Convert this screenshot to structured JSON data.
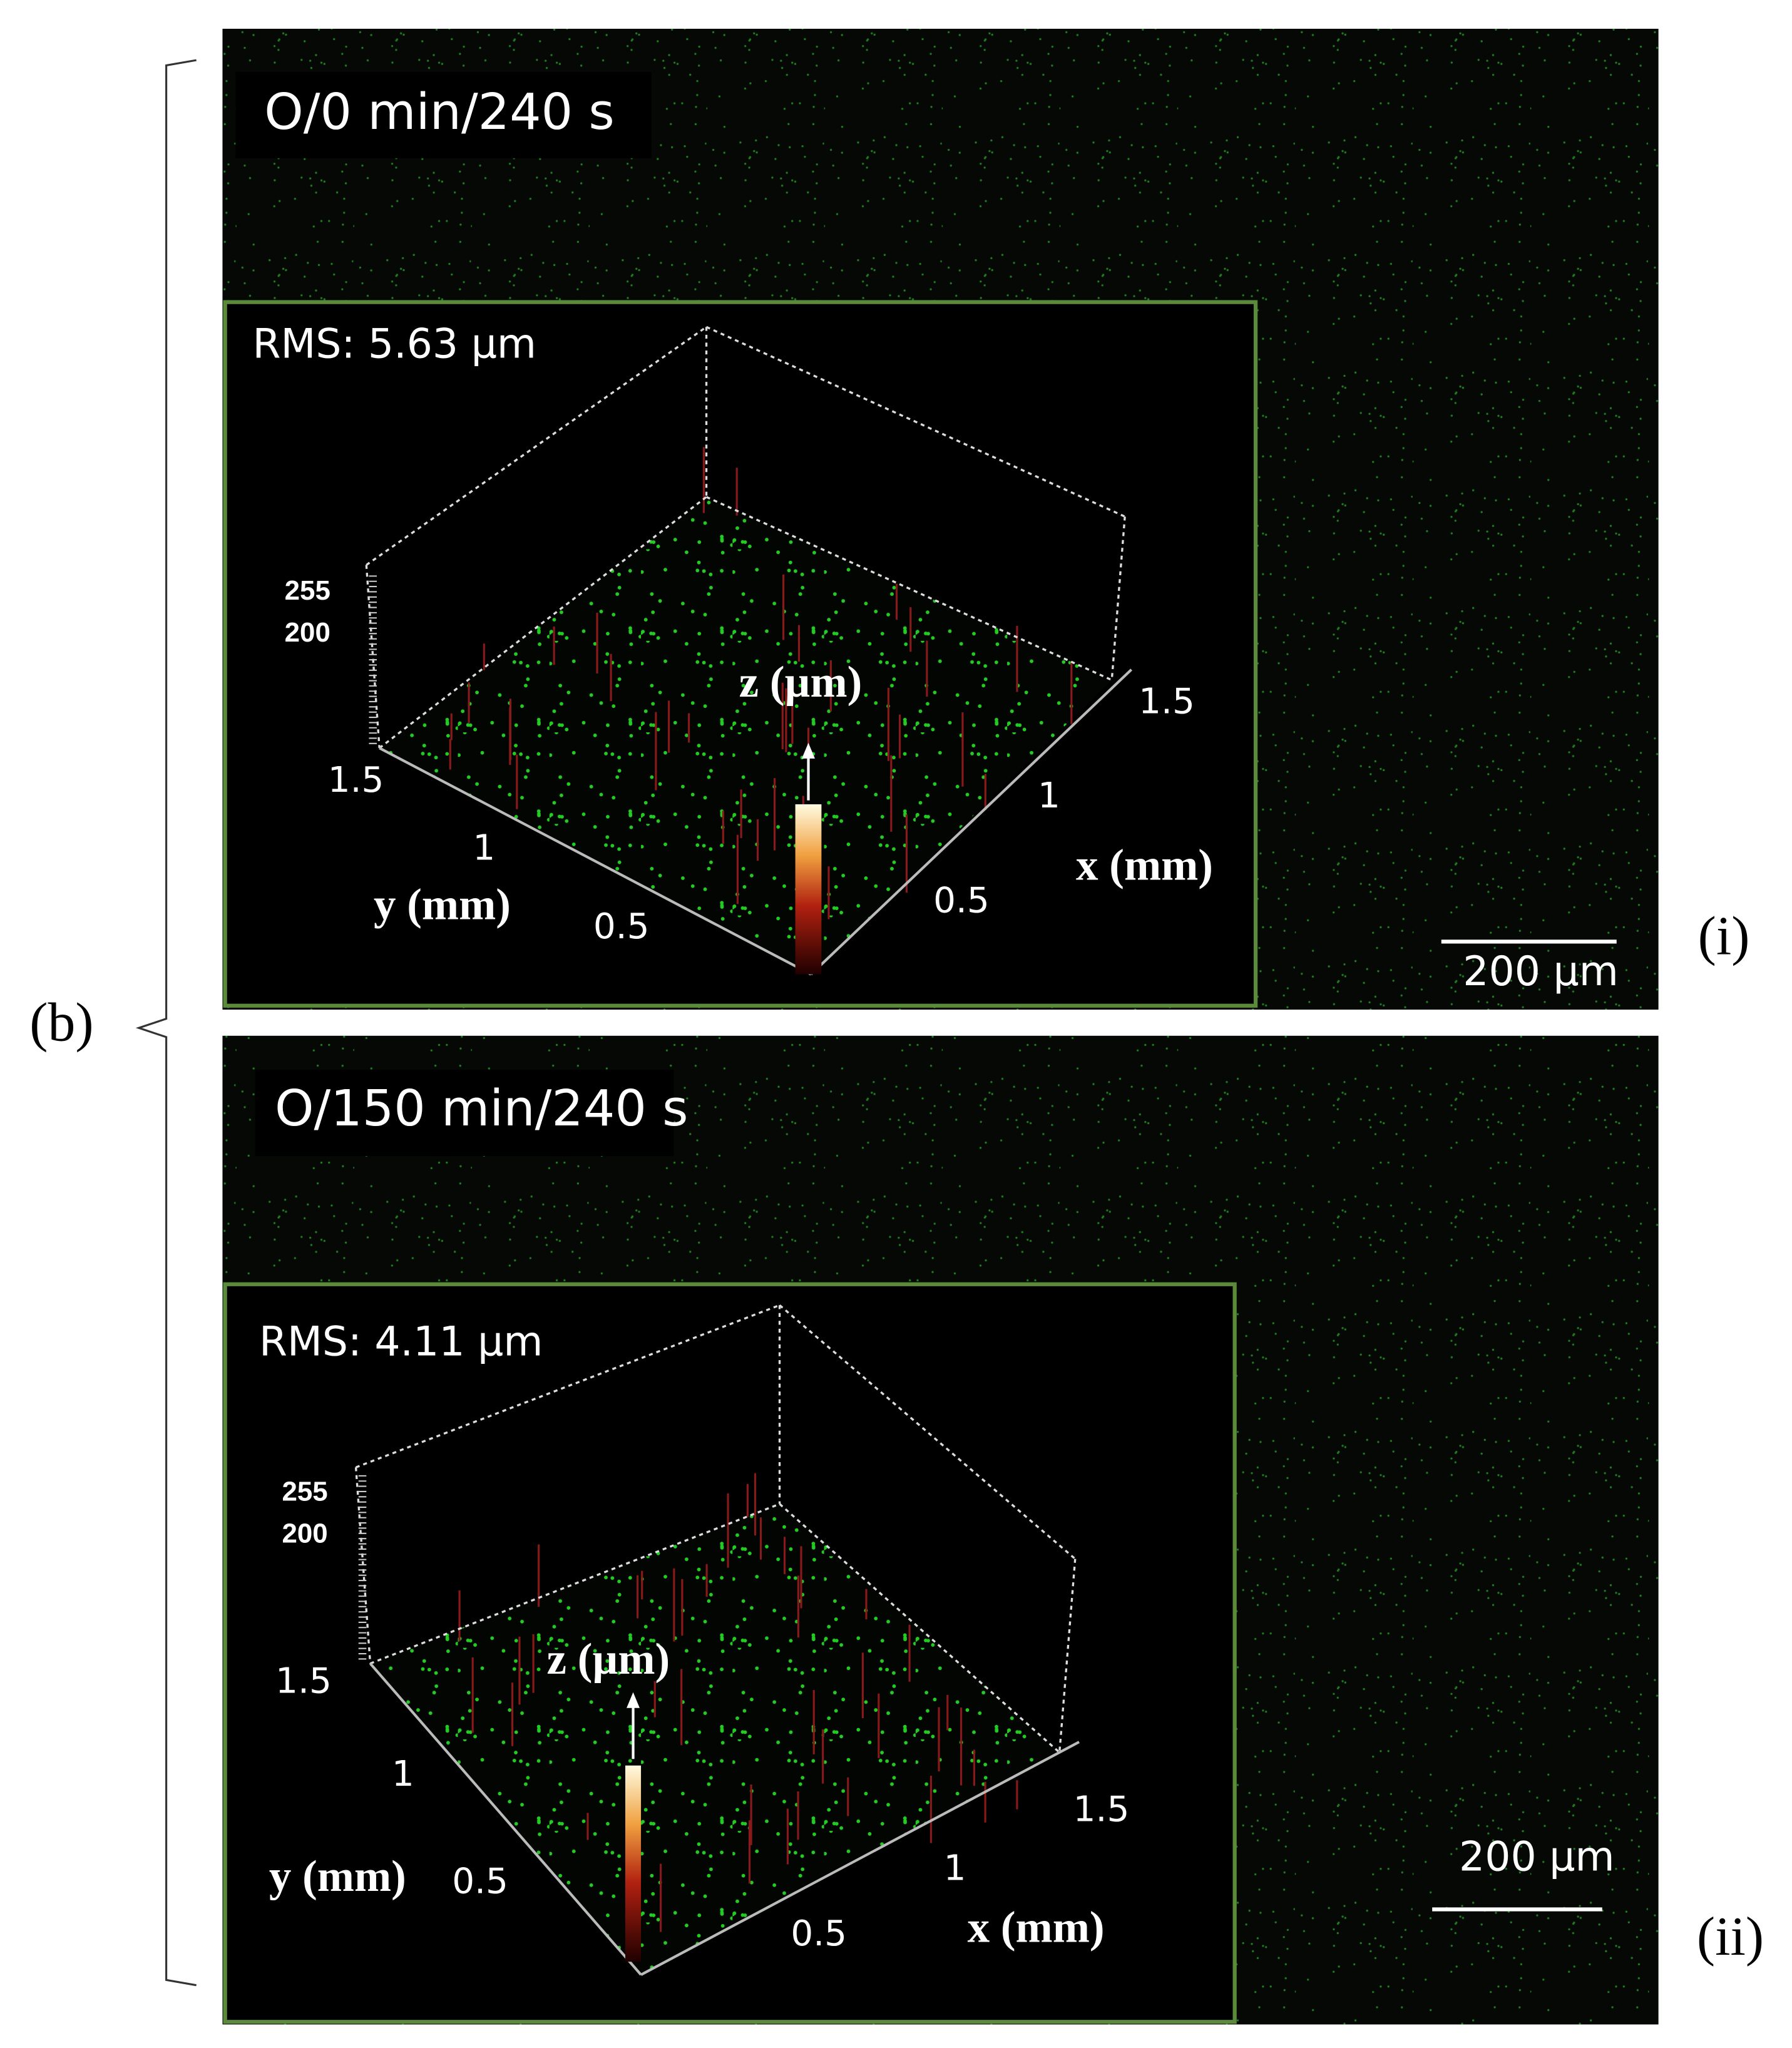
{
  "figure_label": "(b)",
  "panels": [
    {
      "label": "O/0 min/240 s",
      "rms": "RMS: 5.63 µm",
      "z_ticks": [
        "255",
        "200"
      ],
      "z_label": "z (µm)",
      "y_ticks": [
        "1.5",
        "1",
        "0.5"
      ],
      "y_label": "y (mm)",
      "x_ticks": [
        "1.5",
        "1",
        "0.5"
      ],
      "x_label": "x (mm)",
      "scale_bar": "200 µm",
      "tag": "(i)"
    },
    {
      "label": "O/150 min/240 s",
      "rms": "RMS: 4.11 µm",
      "z_ticks": [
        "255",
        "200"
      ],
      "z_label": "z (µm)",
      "y_ticks": [
        "1.5",
        "1",
        "0.5"
      ],
      "y_label": "y (mm)",
      "x_ticks": [
        "1.5",
        "1",
        "0.5"
      ],
      "x_label": "x (mm)",
      "scale_bar": "200 µm",
      "tag": "(ii)"
    }
  ]
}
